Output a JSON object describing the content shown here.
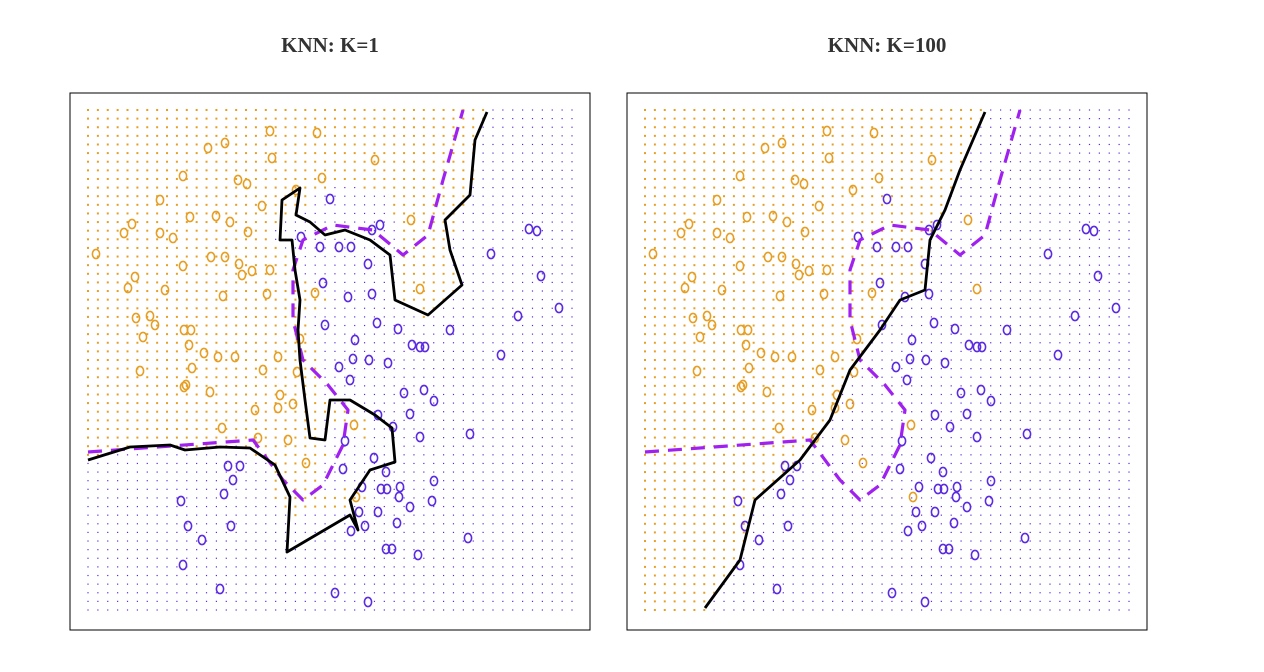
{
  "chart_data": [
    {
      "type": "scatter",
      "title": "KNN: K=1",
      "xlim": [
        88,
        572
      ],
      "ylim": [
        610,
        110
      ],
      "series": [
        {
          "color": "#e69f25",
          "x": [
            208,
            225,
            270,
            317,
            272,
            375,
            183,
            238,
            247,
            322,
            296,
            262,
            160,
            190,
            216,
            230,
            132,
            124,
            160,
            173,
            248,
            96,
            183,
            211,
            225,
            239,
            242,
            252,
            270,
            135,
            128,
            165,
            223,
            267,
            315,
            136,
            150,
            155,
            184,
            191,
            143,
            189,
            204,
            218,
            235,
            278,
            300,
            140,
            192,
            263,
            297,
            186,
            184,
            210,
            280,
            293,
            255,
            278,
            222,
            258,
            288,
            354,
            306,
            356,
            420,
            411
          ],
          "y": [
            148,
            143,
            131,
            133,
            158,
            160,
            176,
            180,
            184,
            178,
            190,
            206,
            200,
            217,
            216,
            222,
            224,
            233,
            233,
            238,
            232,
            254,
            266,
            257,
            257,
            264,
            275,
            271,
            270,
            277,
            288,
            290,
            296,
            294,
            293,
            318,
            316,
            325,
            330,
            330,
            337,
            345,
            353,
            357,
            357,
            357,
            339,
            371,
            368,
            370,
            372,
            385,
            387,
            392,
            395,
            404,
            410,
            408,
            428,
            438,
            440,
            425,
            463,
            497,
            289,
            220
          ]
        },
        {
          "color": "#5a2be0",
          "x": [
            330,
            301,
            320,
            339,
            351,
            368,
            372,
            380,
            491,
            529,
            537,
            541,
            559,
            518,
            450,
            323,
            348,
            372,
            325,
            377,
            398,
            355,
            412,
            420,
            425,
            501,
            339,
            353,
            369,
            388,
            350,
            404,
            424,
            434,
            410,
            378,
            393,
            420,
            470,
            345,
            374,
            228,
            240,
            233,
            343,
            386,
            362,
            381,
            387,
            400,
            434,
            399,
            181,
            224,
            359,
            378,
            410,
            432,
            188,
            231,
            351,
            365,
            397,
            202,
            468,
            386,
            392,
            418,
            183,
            220,
            335,
            368
          ],
          "y": [
            199,
            237,
            247,
            247,
            247,
            264,
            230,
            225,
            254,
            229,
            231,
            276,
            308,
            316,
            330,
            283,
            297,
            294,
            325,
            323,
            329,
            340,
            345,
            347,
            347,
            355,
            367,
            359,
            360,
            363,
            380,
            393,
            390,
            401,
            414,
            415,
            427,
            437,
            434,
            441,
            458,
            466,
            466,
            480,
            469,
            472,
            487,
            489,
            489,
            487,
            481,
            497,
            501,
            494,
            512,
            512,
            507,
            501,
            526,
            526,
            531,
            526,
            523,
            540,
            538,
            549,
            549,
            555,
            565,
            589,
            593,
            602
          ]
        },
        {
          "type": "line",
          "color": "#a020f0",
          "dashed": true,
          "x": [
            88,
            253,
            283,
            303,
            323,
            343,
            348,
            328,
            303,
            293,
            293,
            303,
            333,
            373,
            403,
            428,
            443,
            463
          ],
          "y": [
            452,
            440,
            480,
            500,
            485,
            445,
            410,
            385,
            360,
            320,
            270,
            240,
            225,
            230,
            255,
            235,
            180,
            110
          ]
        },
        {
          "type": "line",
          "color": "#000000",
          "dashed": false,
          "x": [
            88,
            130,
            170,
            185,
            220,
            250,
            275,
            290,
            287,
            350,
            358,
            350,
            370,
            395,
            392,
            375,
            350,
            330,
            325,
            310,
            305,
            300,
            298,
            300,
            295,
            292,
            280,
            282,
            300,
            296,
            310,
            325,
            345,
            370,
            390,
            395,
            428,
            462,
            450,
            445,
            470,
            475,
            487
          ],
          "y": [
            460,
            447,
            445,
            450,
            447,
            448,
            465,
            497,
            552,
            515,
            530,
            500,
            470,
            462,
            428,
            415,
            400,
            400,
            440,
            438,
            400,
            360,
            330,
            300,
            270,
            240,
            240,
            200,
            188,
            215,
            222,
            235,
            230,
            240,
            255,
            300,
            315,
            285,
            250,
            220,
            195,
            140,
            112
          ]
        }
      ]
    },
    {
      "type": "scatter",
      "title": "KNN: K=100",
      "xlim": [
        88,
        572
      ],
      "ylim": [
        610,
        110
      ],
      "series": [
        {
          "color": "#e69f25",
          "x": [
            208,
            225,
            270,
            317,
            272,
            375,
            183,
            238,
            247,
            322,
            296,
            262,
            160,
            190,
            216,
            230,
            132,
            124,
            160,
            173,
            248,
            96,
            183,
            211,
            225,
            239,
            242,
            252,
            270,
            135,
            128,
            165,
            223,
            267,
            315,
            136,
            150,
            155,
            184,
            191,
            143,
            189,
            204,
            218,
            235,
            278,
            300,
            140,
            192,
            263,
            297,
            186,
            184,
            210,
            280,
            293,
            255,
            278,
            222,
            258,
            288,
            354,
            306,
            356,
            420,
            411
          ],
          "y": [
            148,
            143,
            131,
            133,
            158,
            160,
            176,
            180,
            184,
            178,
            190,
            206,
            200,
            217,
            216,
            222,
            224,
            233,
            233,
            238,
            232,
            254,
            266,
            257,
            257,
            264,
            275,
            271,
            270,
            277,
            288,
            290,
            296,
            294,
            293,
            318,
            316,
            325,
            330,
            330,
            337,
            345,
            353,
            357,
            357,
            357,
            339,
            371,
            368,
            370,
            372,
            385,
            387,
            392,
            395,
            404,
            410,
            408,
            428,
            438,
            440,
            425,
            463,
            497,
            289,
            220
          ]
        },
        {
          "color": "#5a2be0",
          "x": [
            330,
            301,
            320,
            339,
            351,
            368,
            372,
            380,
            491,
            529,
            537,
            541,
            559,
            518,
            450,
            323,
            348,
            372,
            325,
            377,
            398,
            355,
            412,
            420,
            425,
            501,
            339,
            353,
            369,
            388,
            350,
            404,
            424,
            434,
            410,
            378,
            393,
            420,
            470,
            345,
            374,
            228,
            240,
            233,
            343,
            386,
            362,
            381,
            387,
            400,
            434,
            399,
            181,
            224,
            359,
            378,
            410,
            432,
            188,
            231,
            351,
            365,
            397,
            202,
            468,
            386,
            392,
            418,
            183,
            220,
            335,
            368
          ],
          "y": [
            199,
            237,
            247,
            247,
            247,
            264,
            230,
            225,
            254,
            229,
            231,
            276,
            308,
            316,
            330,
            283,
            297,
            294,
            325,
            323,
            329,
            340,
            345,
            347,
            347,
            355,
            367,
            359,
            360,
            363,
            380,
            393,
            390,
            401,
            414,
            415,
            427,
            437,
            434,
            441,
            458,
            466,
            466,
            480,
            469,
            472,
            487,
            489,
            489,
            487,
            481,
            497,
            501,
            494,
            512,
            512,
            507,
            501,
            526,
            526,
            531,
            526,
            523,
            540,
            538,
            549,
            549,
            555,
            565,
            589,
            593,
            602
          ]
        },
        {
          "type": "line",
          "color": "#a020f0",
          "dashed": true,
          "x": [
            88,
            253,
            283,
            303,
            323,
            343,
            348,
            328,
            303,
            293,
            293,
            303,
            333,
            373,
            403,
            428,
            443,
            463
          ],
          "y": [
            452,
            440,
            480,
            500,
            485,
            445,
            410,
            385,
            360,
            320,
            270,
            240,
            225,
            230,
            255,
            235,
            180,
            110
          ]
        },
        {
          "type": "line",
          "color": "#000000",
          "dashed": false,
          "x": [
            148,
            183,
            198,
            243,
            273,
            293,
            323,
            343,
            368,
            373,
            388,
            403,
            428
          ],
          "y": [
            608,
            560,
            500,
            460,
            420,
            370,
            330,
            300,
            290,
            240,
            210,
            170,
            112
          ]
        }
      ]
    }
  ]
}
